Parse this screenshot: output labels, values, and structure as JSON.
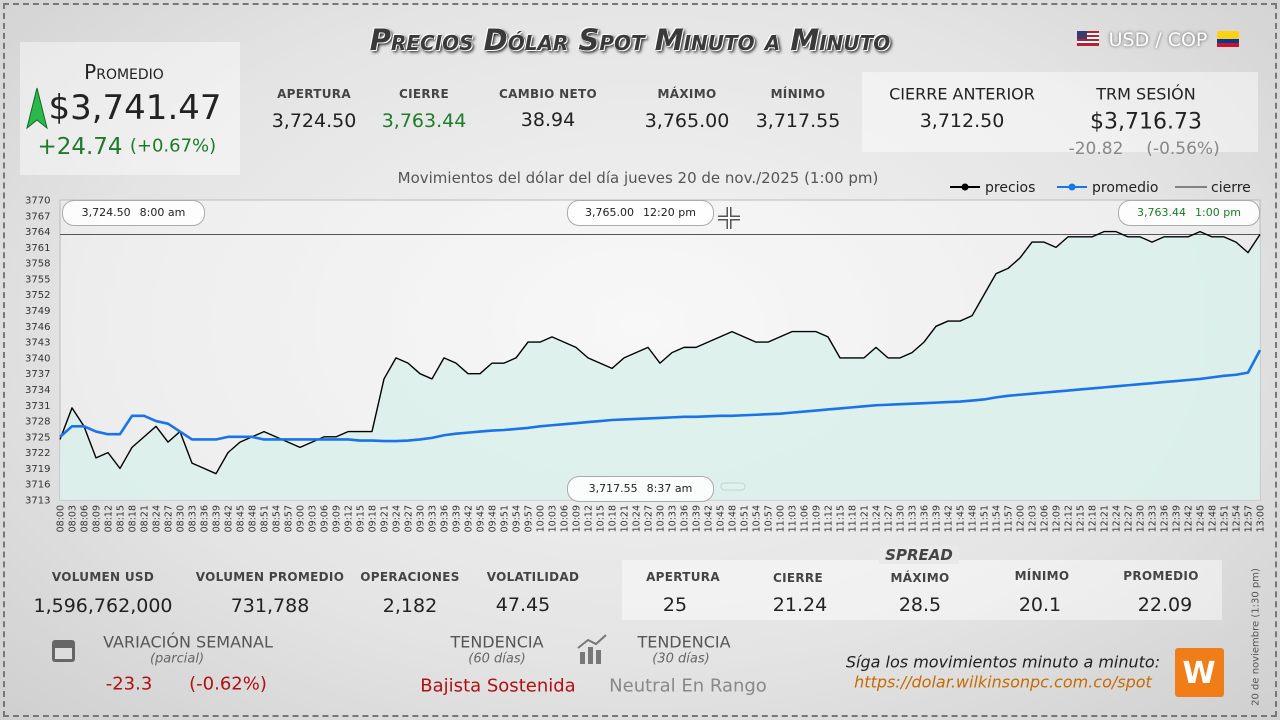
{
  "header": {
    "title": "Precios Dólar Spot Minuto a Minuto",
    "pair": "USD / COP"
  },
  "promedio": {
    "label": "Promedio",
    "value": "$3,741.47",
    "change": "+24.74",
    "change_pct": "(+0.67%)"
  },
  "summary": [
    {
      "label": "APERTURA",
      "value": "3,724.50"
    },
    {
      "label": "CIERRE",
      "value": "3,763.44"
    },
    {
      "label": "CAMBIO NETO",
      "value": "38.94"
    },
    {
      "label": "MÁXIMO",
      "value": "3,765.00"
    },
    {
      "label": "MÍNIMO",
      "value": "3,717.55"
    }
  ],
  "previous": {
    "label": "CIERRE ANTERIOR",
    "value": "3,712.50"
  },
  "trm": {
    "label": "TRM SESIÓN",
    "value": "$3,716.73",
    "change": "-20.82",
    "change_pct": "(-0.56%)"
  },
  "chart_data": {
    "type": "line",
    "subtitle": "Movimientos del dólar del día jueves 20 de nov./2025 (1:00 pm)",
    "categories": [
      "08:00",
      "08:03",
      "08:06",
      "08:09",
      "08:12",
      "08:15",
      "08:18",
      "08:21",
      "08:24",
      "08:27",
      "08:30",
      "08:33",
      "08:36",
      "08:39",
      "08:42",
      "08:45",
      "08:48",
      "08:51",
      "08:54",
      "08:57",
      "09:00",
      "09:03",
      "09:06",
      "09:09",
      "09:12",
      "09:15",
      "09:18",
      "09:21",
      "09:24",
      "09:27",
      "09:30",
      "09:33",
      "09:36",
      "09:39",
      "09:42",
      "09:45",
      "09:48",
      "09:51",
      "09:54",
      "09:57",
      "10:00",
      "10:03",
      "10:06",
      "10:09",
      "10:12",
      "10:15",
      "10:18",
      "10:21",
      "10:24",
      "10:27",
      "10:30",
      "10:33",
      "10:36",
      "10:39",
      "10:42",
      "10:45",
      "10:48",
      "10:51",
      "10:54",
      "10:57",
      "11:00",
      "11:03",
      "11:06",
      "11:09",
      "11:12",
      "11:15",
      "11:18",
      "11:21",
      "11:24",
      "11:27",
      "11:30",
      "11:33",
      "11:36",
      "11:39",
      "11:42",
      "11:45",
      "11:48",
      "11:51",
      "11:54",
      "11:57",
      "12:00",
      "12:03",
      "12:06",
      "12:09",
      "12:12",
      "12:15",
      "12:18",
      "12:21",
      "12:24",
      "12:27",
      "12:30",
      "12:33",
      "12:36",
      "12:39",
      "12:42",
      "12:45",
      "12:48",
      "12:51",
      "12:54",
      "12:57",
      "13:00"
    ],
    "series": [
      {
        "name": "precios",
        "color": "#000000",
        "values": [
          3724.5,
          3730.5,
          3727,
          3721,
          3722,
          3719,
          3723,
          3725,
          3727,
          3724,
          3726,
          3720,
          3719,
          3718,
          3722,
          3724,
          3725,
          3726,
          3725,
          3724,
          3723,
          3724,
          3725,
          3725,
          3726,
          3726,
          3726,
          3736,
          3740,
          3739,
          3737,
          3736,
          3740,
          3739,
          3737,
          3737,
          3739,
          3739,
          3740,
          3743,
          3743,
          3744,
          3743,
          3742,
          3740,
          3739,
          3738,
          3740,
          3741,
          3742,
          3739,
          3741,
          3742,
          3742,
          3743,
          3744,
          3745,
          3744,
          3743,
          3743,
          3744,
          3745,
          3745,
          3745,
          3744,
          3740,
          3740,
          3740,
          3742,
          3740,
          3740,
          3741,
          3743,
          3746,
          3747,
          3747,
          3748,
          3752,
          3756,
          3757,
          3759,
          3762,
          3762,
          3761,
          3763,
          3763,
          3763,
          3764,
          3764,
          3763,
          3763,
          3762,
          3763,
          3763,
          3763,
          3764,
          3763,
          3763,
          3762,
          3760,
          3763.44
        ]
      },
      {
        "name": "promedio",
        "color": "#1a73e8",
        "values": [
          3725,
          3727,
          3727,
          3726,
          3725.5,
          3725.5,
          3729,
          3729,
          3728,
          3727.5,
          3726,
          3724.5,
          3724.5,
          3724.5,
          3725,
          3725,
          3725,
          3724.5,
          3724.5,
          3724.5,
          3724.5,
          3724.5,
          3724.5,
          3724.5,
          3724.5,
          3724.3,
          3724.3,
          3724.2,
          3724.2,
          3724.3,
          3724.5,
          3724.8,
          3725.3,
          3725.6,
          3725.8,
          3726,
          3726.2,
          3726.3,
          3726.5,
          3726.7,
          3727,
          3727.2,
          3727.4,
          3727.6,
          3727.8,
          3728,
          3728.2,
          3728.3,
          3728.4,
          3728.5,
          3728.6,
          3728.7,
          3728.8,
          3728.8,
          3728.9,
          3729,
          3729,
          3729.1,
          3729.2,
          3729.3,
          3729.4,
          3729.6,
          3729.8,
          3730,
          3730.2,
          3730.4,
          3730.6,
          3730.8,
          3731,
          3731.1,
          3731.2,
          3731.3,
          3731.4,
          3731.5,
          3731.6,
          3731.7,
          3731.9,
          3732.1,
          3732.5,
          3732.8,
          3733,
          3733.2,
          3733.4,
          3733.6,
          3733.8,
          3734,
          3734.2,
          3734.4,
          3734.6,
          3734.8,
          3735,
          3735.2,
          3735.4,
          3735.6,
          3735.8,
          3736,
          3736.3,
          3736.6,
          3736.8,
          3737.2,
          3741.47
        ]
      }
    ],
    "reference_line": {
      "name": "cierre",
      "value": 3763.44,
      "color": "#555555"
    },
    "fill": "#d9f0ea",
    "grid": false,
    "ylim": [
      3713,
      3770
    ],
    "yticks": [
      3713,
      3716,
      3719,
      3722,
      3725,
      3728,
      3731,
      3734,
      3737,
      3740,
      3743,
      3746,
      3749,
      3752,
      3755,
      3758,
      3761,
      3764,
      3767,
      3770
    ],
    "annotations": [
      {
        "price": "3,724.50",
        "time": "8:00 am"
      },
      {
        "price": "3,765.00",
        "time": "12:20 pm"
      },
      {
        "price": "3,763.44",
        "time": "1:00 pm"
      },
      {
        "price": "3,717.55",
        "time": "8:37 am"
      }
    ]
  },
  "volume": [
    {
      "label": "VOLUMEN USD",
      "value": "1,596,762,000"
    },
    {
      "label": "VOLUMEN PROMEDIO",
      "value": "731,788"
    },
    {
      "label": "OPERACIONES",
      "value": "2,182"
    },
    {
      "label": "VOLATILIDAD",
      "value": "47.45"
    }
  ],
  "spread": {
    "title": "SPREAD",
    "items": [
      {
        "label": "APERTURA",
        "value": "25"
      },
      {
        "label": "CIERRE",
        "value": "21.24"
      },
      {
        "label": "MÁXIMO",
        "value": "28.5"
      },
      {
        "label": "MÍNIMO",
        "value": "20.1"
      },
      {
        "label": "PROMEDIO",
        "value": "22.09"
      }
    ]
  },
  "weekly": {
    "label": "VARIACIÓN SEMANAL",
    "note": "(parcial)",
    "change": "-23.3",
    "change_pct": "(-0.62%)"
  },
  "trend60": {
    "label": "TENDENCIA",
    "note": "(60 días)",
    "value": "Bajista Sostenida"
  },
  "trend30": {
    "label": "TENDENCIA",
    "note": "(30 días)",
    "value": "Neutral En Rango"
  },
  "footer": {
    "cta": "Síga los movimientos minuto a minuto:",
    "url": "https://dolar.wilkinsonpc.com.co/spot",
    "stamp": "20 de noviembre (1:30 pm)"
  }
}
